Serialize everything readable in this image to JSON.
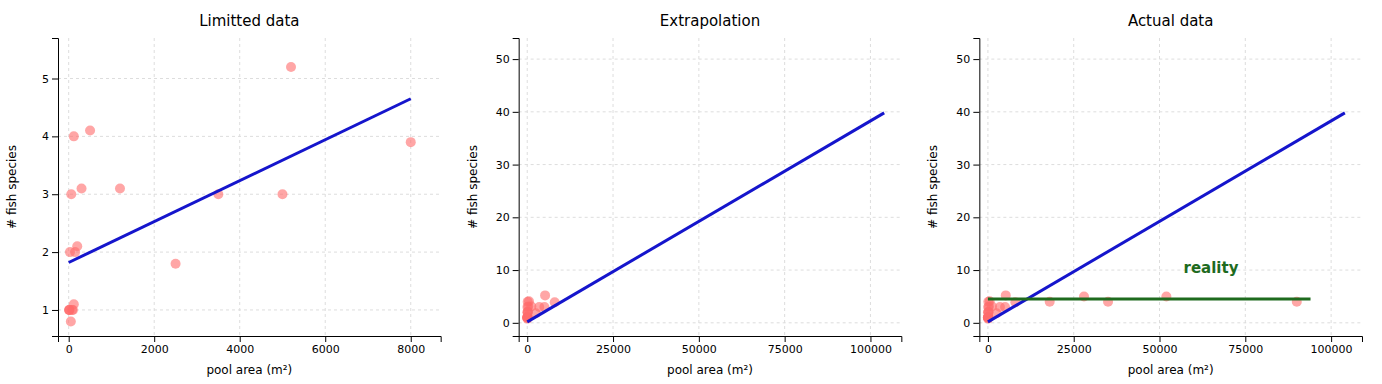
{
  "chart_data": [
    {
      "type": "scatter",
      "title": "Limitted data",
      "xlabel": "pool area (m²)",
      "ylabel": "# fish species",
      "series": [
        {
          "type": "scatter",
          "color": "#FF6B6B",
          "x": [
            10,
            20,
            50,
            80,
            100,
            120,
            150,
            200,
            300,
            500,
            1200,
            2500,
            3500,
            5000,
            8000,
            10,
            30,
            60,
            120,
            5200
          ],
          "values": [
            1.0,
            1.0,
            0.8,
            1.0,
            1.0,
            1.1,
            2.0,
            2.1,
            3.1,
            4.1,
            3.1,
            1.8,
            3.0,
            3.0,
            3.9,
            1.0,
            2.0,
            3.0,
            4.0,
            5.2
          ]
        },
        {
          "type": "line",
          "color": "#1515CC",
          "x": [
            0,
            8000
          ],
          "values": [
            1.82,
            4.65
          ]
        }
      ],
      "xlim": [
        -250,
        8700
      ],
      "ylim": [
        0.55,
        5.7
      ],
      "xticks": [
        0,
        2000,
        4000,
        6000,
        8000
      ],
      "yticks": [
        1,
        2,
        3,
        4,
        5
      ],
      "grid": true
    },
    {
      "type": "scatter",
      "title": "Extrapolation",
      "xlabel": "pool area (m²)",
      "ylabel": "# fish species",
      "series": [
        {
          "type": "scatter",
          "color": "#FF6B6B",
          "x": [
            10,
            20,
            50,
            80,
            100,
            120,
            150,
            200,
            300,
            500,
            1200,
            2500,
            3500,
            5000,
            8000,
            10,
            30,
            60,
            120,
            5200
          ],
          "values": [
            1.0,
            1.0,
            0.8,
            1.0,
            1.0,
            1.1,
            2.0,
            2.1,
            3.1,
            4.1,
            3.1,
            1.8,
            3.0,
            3.0,
            3.9,
            1.0,
            2.0,
            3.0,
            4.0,
            5.2
          ]
        },
        {
          "type": "line",
          "color": "#1515CC",
          "x": [
            0,
            104000
          ],
          "values": [
            0.18,
            39.8
          ]
        }
      ],
      "xlim": [
        -2500,
        109000
      ],
      "ylim": [
        -2.5,
        54
      ],
      "xticks": [
        0,
        25000,
        50000,
        75000,
        100000
      ],
      "yticks": [
        0,
        10,
        20,
        30,
        40,
        50
      ],
      "grid": true
    },
    {
      "type": "scatter",
      "title": "Actual data",
      "xlabel": "pool area (m²)",
      "ylabel": "# fish species",
      "series": [
        {
          "type": "scatter",
          "color": "#FF6B6B",
          "x": [
            10,
            20,
            50,
            80,
            100,
            120,
            150,
            200,
            300,
            500,
            1200,
            2500,
            3500,
            5000,
            8000,
            10,
            30,
            60,
            120,
            5200
          ],
          "values": [
            1.0,
            1.0,
            0.8,
            1.0,
            1.0,
            1.1,
            2.0,
            2.1,
            3.1,
            4.1,
            3.1,
            1.8,
            3.0,
            3.0,
            3.9,
            1.0,
            2.0,
            3.0,
            4.0,
            5.2
          ]
        },
        {
          "type": "scatter",
          "color": "#FF6B6B",
          "x": [
            18000,
            28000,
            35000,
            52000,
            90000
          ],
          "values": [
            4.0,
            5.0,
            4.0,
            5.0,
            4.0
          ]
        },
        {
          "type": "line",
          "color": "#1515CC",
          "x": [
            0,
            104000
          ],
          "values": [
            0.18,
            39.8
          ]
        },
        {
          "type": "line",
          "color": "#1E6B1E",
          "x": [
            0,
            94000
          ],
          "values": [
            4.5,
            4.5
          ]
        }
      ],
      "annotations": [
        {
          "text": "reality",
          "x": 57000,
          "y": 9.5,
          "color": "#1E6B1E"
        }
      ],
      "xlim": [
        -2500,
        109000
      ],
      "ylim": [
        -2.5,
        54
      ],
      "xticks": [
        0,
        25000,
        50000,
        75000,
        100000
      ],
      "yticks": [
        0,
        10,
        20,
        30,
        40,
        50
      ],
      "grid": true
    }
  ]
}
